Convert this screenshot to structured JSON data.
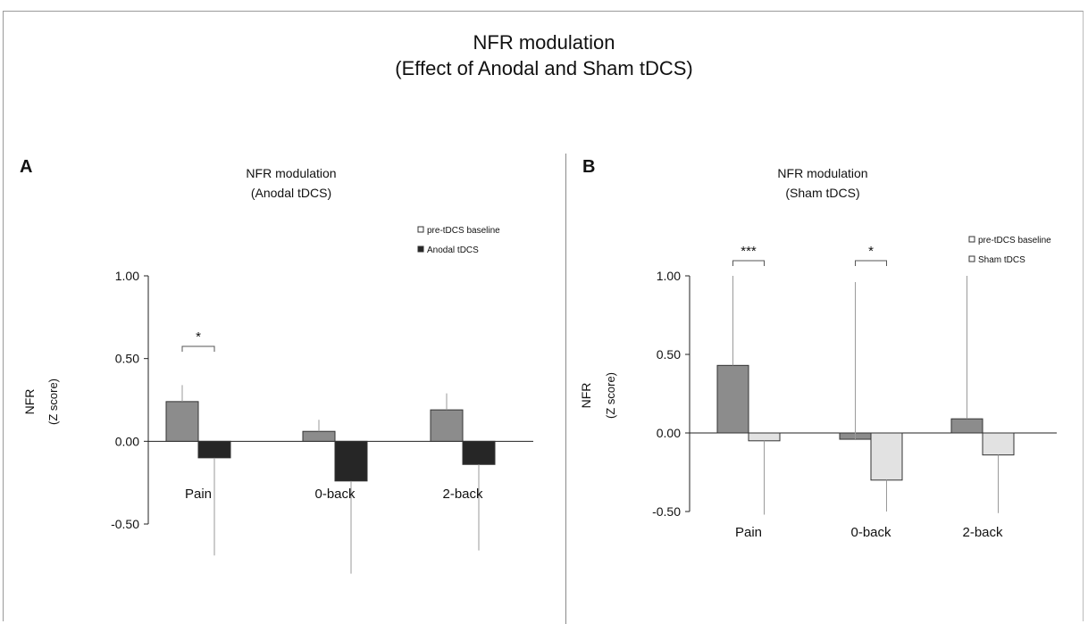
{
  "figure": {
    "title_line1": "NFR modulation",
    "title_line2": "(Effect of Anodal and Sham tDCS)"
  },
  "colors": {
    "baseline": "#8c8c8c",
    "anodal": "#262626",
    "sham": "#e2e2e2",
    "axis": "#222222"
  },
  "chart_data": [
    {
      "type": "bar",
      "panel": "A",
      "title": [
        "NFR modulation",
        "(Anodal tDCS)"
      ],
      "ylabel": [
        "NFR",
        "(Z score)"
      ],
      "xlabel": "",
      "ylim": [
        -0.5,
        1.0
      ],
      "yticks": [
        1.0,
        0.5,
        0.0,
        -0.5
      ],
      "ytick_labels": [
        "1.00",
        "0.50",
        "0.00",
        "-0.50"
      ],
      "categories": [
        "Pain",
        "0-back",
        "2-back"
      ],
      "legend": {
        "placement": "top-right"
      },
      "series": [
        {
          "name": "pre-tDCS baseline",
          "values": [
            0.24,
            0.06,
            0.19
          ],
          "error": [
            0.1,
            0.07,
            0.1
          ],
          "error_dir": "up"
        },
        {
          "name": "Anodal tDCS",
          "values": [
            -0.1,
            -0.24,
            -0.14
          ],
          "error": [
            0.59,
            0.56,
            0.52
          ],
          "error_dir": "down"
        }
      ],
      "significance": [
        {
          "category": "Pain",
          "label": "*"
        }
      ]
    },
    {
      "type": "bar",
      "panel": "B",
      "title": [
        "NFR modulation",
        "(Sham tDCS)"
      ],
      "ylabel": [
        "NFR",
        "(Z score)"
      ],
      "xlabel": "",
      "ylim": [
        -0.5,
        1.0
      ],
      "yticks": [
        1.0,
        0.5,
        0.0,
        -0.5
      ],
      "ytick_labels": [
        "1.00",
        "0.50",
        "0.00",
        "-0.50"
      ],
      "categories": [
        "Pain",
        "0-back",
        "2-back"
      ],
      "legend": {
        "placement": "top-right"
      },
      "series": [
        {
          "name": "pre-tDCS baseline",
          "values": [
            0.43,
            -0.04,
            0.09
          ],
          "error": [
            0.57,
            1.0,
            0.91
          ],
          "error_dir": "up"
        },
        {
          "name": "Sham tDCS",
          "values": [
            -0.05,
            -0.3,
            -0.14
          ],
          "error": [
            0.47,
            0.2,
            0.37
          ],
          "error_dir": "down"
        }
      ],
      "significance": [
        {
          "category": "Pain",
          "label": "***"
        },
        {
          "category": "0-back",
          "label": "*"
        }
      ]
    }
  ]
}
